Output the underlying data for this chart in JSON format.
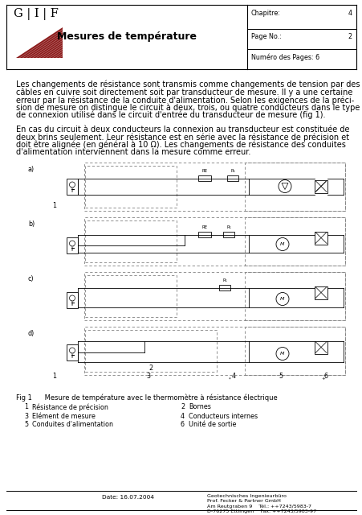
{
  "title": "Mesures de température",
  "header_chapitre_label": "Chapitre:",
  "header_chapitre_value": "4",
  "header_page_label": "Page No.:",
  "header_page_value": "2",
  "header_numpage_label": "Numéro des Pages: 6",
  "logo_text": "G | I | F",
  "body_para1_lines": [
    "Les changements de résistance sont transmis comme changements de tension par des",
    "câbles en cuivre soit directement soit par transducteur de mesure. Il y a une certaine",
    "erreur par la résistance de la conduite d'alimentation. Selon les exigences de la préci-",
    "sion de mesure on distingue le circuit à deux, trois, ou quatre conducteurs dans le type",
    "de connexion utilisé dans le circuit d'entrée du transducteur de mesure (fig 1)."
  ],
  "body_para2_lines": [
    "En cas du circuit à deux conducteurs la connexion au transducteur est constituée de",
    "deux brins seulement. Leur résistance est en série avec la résistance de précision et",
    "doit être alignée (en général à 10 Ω). Les changements de résistance des conduites",
    "d'alimentation interviennent dans la mesure comme erreur."
  ],
  "fig_caption": "Fig 1      Mesure de température avec le thermomètre à résistance électrique",
  "fig_items": [
    [
      "1",
      "Résistance de précision",
      "2",
      "Bornes"
    ],
    [
      "3",
      "Elément de mesure",
      "4",
      "Conducteurs internes"
    ],
    [
      "5",
      "Conduites d'alimentation",
      "6",
      "Unité de sortie"
    ]
  ],
  "footer_date": "Date: 16.07.2004",
  "footer_lines": [
    "Geotechnisches Ingenieurbüro",
    "Prof. Fecker & Partner GmbH",
    "Am Reutgraben 9    Tél.: ++7243/5983-7",
    "D-76275 Ettlingen    Fax: ++7243/5983-97"
  ],
  "bg_color": "#ffffff",
  "accent_color": "#8B1A1A",
  "font_size_body": 7.0,
  "font_size_small": 5.8,
  "font_size_logo": 10.5,
  "font_size_title": 9.0
}
